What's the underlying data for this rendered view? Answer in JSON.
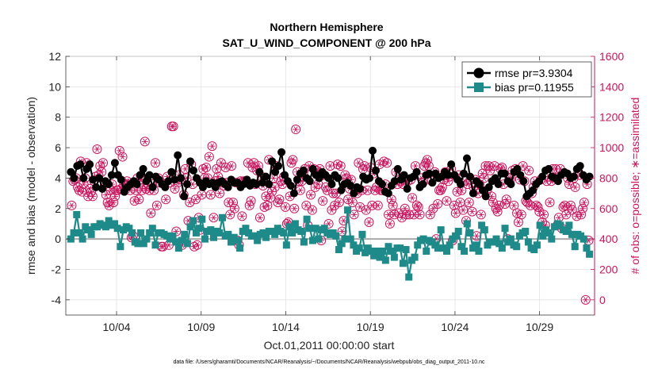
{
  "chart_data": {
    "type": "line",
    "title": "Northern Hemisphere",
    "subtitle": "SAT_U_WIND_COMPONENT @ 200 hPa",
    "xlabel": "Oct.01,2011 00:00:00 start",
    "ylabel_left": "rmse and bias (model - observation)",
    "ylabel_right": "# of obs: o=possible; ∗=assimilated",
    "footnote": "data file: /Users/gharamti/Documents/NCAR/Reanalysis/~/Documents/NCAR/Reanalysis/webpub/obs_diag_output_2011-10.nc",
    "xlim": [
      0.5,
      31.75
    ],
    "ylim_left": [
      -5,
      12
    ],
    "ylim_right": [
      -100,
      1600
    ],
    "x_ticks": [
      3.5,
      8.5,
      13.5,
      18.5,
      23.5,
      28.5
    ],
    "x_tick_labels": [
      "10/04",
      "10/09",
      "10/14",
      "10/19",
      "10/24",
      "10/29"
    ],
    "y_ticks_left": [
      -4,
      -2,
      0,
      2,
      4,
      6,
      8,
      10,
      12
    ],
    "y_tick_labels_left": [
      "-4",
      "-2",
      "0",
      "2",
      "4",
      "6",
      "8",
      "10",
      "12"
    ],
    "y_ticks_right": [
      0,
      200,
      400,
      600,
      800,
      1000,
      1200,
      1400,
      1600
    ],
    "y_tick_labels_right": [
      "0",
      "200",
      "400",
      "600",
      "800",
      "1000",
      "1200",
      "1400",
      "1600"
    ],
    "grid": true,
    "legend_position": "top-right",
    "colors": {
      "rmse": "#000000",
      "bias": "#1e8a89",
      "obs": "#c8155e",
      "zero_line": "#a9a9a9"
    },
    "series": [
      {
        "name": "rmse pr=3.9304",
        "axis": "left",
        "marker": "circle",
        "values": [
          4.4,
          4.0,
          4.8,
          4.9,
          4.0,
          4.6,
          4.9,
          3.9,
          3.4,
          4.0,
          3.3,
          3.8,
          3.6,
          4.2,
          5.0,
          4.2,
          3.9,
          3.1,
          3.4,
          3.6,
          3.8,
          3.6,
          4.2,
          4.6,
          3.8,
          4.2,
          3.4,
          4.1,
          3.9,
          3.6,
          3.4,
          3.8,
          4.4,
          3.9,
          5.5,
          4.0,
          2.8,
          3.6,
          5.1,
          4.5,
          4.0,
          3.7,
          3.4,
          3.8,
          3.6,
          3.7,
          3.4,
          3.7,
          3.8,
          3.6,
          3.4,
          3.9,
          3.7,
          3.7,
          3.4,
          3.6,
          3.9,
          3.5,
          3.7,
          3.6,
          4.4,
          3.7,
          4.1,
          3.6,
          5.1,
          4.4,
          4.8,
          5.7,
          4.2,
          3.8,
          3.5,
          3.0,
          3.9,
          4.3,
          4.5,
          4.0,
          3.8,
          4.6,
          4.2,
          4.0,
          4.4,
          4.2,
          4.0,
          3.6,
          4.2,
          4.0,
          3.2,
          3.6,
          3.7,
          3.5,
          3.0,
          3.4,
          3.3,
          4.1,
          3.9,
          4.0,
          5.8,
          4.5,
          3.8,
          3.6,
          3.1,
          3.0,
          3.5,
          3.8,
          4.6,
          3.9,
          4.2,
          3.3,
          4.0,
          4.1,
          4.4,
          3.4,
          3.6,
          4.2,
          4.3,
          3.7,
          4.3,
          4.0,
          4.1,
          4.4,
          4.2,
          4.9,
          4.2,
          3.9,
          3.6,
          4.3,
          5.3,
          4.1,
          3.0,
          3.8,
          3.6,
          3.2,
          2.8,
          3.4,
          3.8,
          4.0,
          3.6,
          4.3,
          4.3,
          3.8,
          3.6,
          4.4,
          4.6,
          4.2,
          3.8,
          2.8,
          3.0,
          3.2,
          3.6,
          3.8,
          4.1,
          4.5,
          4.6,
          4.1,
          4.0,
          3.8,
          4.2,
          4.4,
          4.3,
          4.0,
          4.1,
          4.6,
          4.8,
          4.2,
          3.9,
          4.1
        ]
      },
      {
        "name": "bias pr=0.11955",
        "axis": "left",
        "marker": "square",
        "values": [
          0.0,
          0.4,
          1.6,
          0.4,
          0.0,
          0.8,
          0.6,
          0.3,
          0.8,
          0.8,
          1.0,
          0.9,
          0.8,
          1.2,
          0.9,
          1.0,
          0.7,
          -0.5,
          0.6,
          0.8,
          0.7,
          0.4,
          -0.2,
          -0.3,
          0.4,
          -0.3,
          0.0,
          0.4,
          0.7,
          -0.4,
          0.4,
          0.4,
          0.3,
          0.2,
          0.0,
          0.2,
          -0.2,
          -0.6,
          -0.1,
          0.3,
          -0.3,
          0.8,
          1.2,
          0.4,
          0.7,
          1.3,
          0.0,
          0.5,
          0.6,
          0.1,
          0.5,
          0.4,
          1.4,
          0.2,
          0.3,
          -0.2,
          0.1,
          -0.1,
          -0.6,
          0.5,
          0.7,
          0.4,
          0.2,
          0.2,
          -0.1,
          0.3,
          0.4,
          0.1,
          0.5,
          0.5,
          0.3,
          0.7,
          0.5,
          0.4,
          -0.4,
          0.8,
          0.4,
          1.0,
          0.6,
          0.5,
          -0.2,
          1.3,
          0.7,
          -0.1,
          0.7,
          0.0,
          0.6,
          0.7,
          0.4,
          0.3,
          0.4,
          0.2,
          -0.7,
          -0.3,
          0.0,
          1.9,
          0.0,
          -0.4,
          -0.8,
          -0.6,
          0.3,
          -0.9,
          -0.6,
          -0.8,
          -1.1,
          -0.8,
          -1.2,
          -0.8,
          -1.4,
          -0.5,
          -0.8,
          -1.2,
          -0.6,
          -0.6,
          -1.6,
          -0.7,
          -2.5,
          -1.4,
          -1.2,
          -0.4,
          -0.1,
          0.0,
          -0.8,
          -0.1,
          -0.2,
          -0.4,
          -0.6,
          0.6,
          -0.6,
          -0.8,
          -0.4,
          0.0,
          0.2,
          0.5,
          -0.5,
          -0.8,
          1.0,
          0.4,
          -0.6,
          -0.4,
          -0.8,
          0.9,
          0.6,
          -0.4,
          -0.2,
          -0.2,
          0.0,
          -0.3,
          -0.6,
          0.7,
          -0.2,
          0.0,
          -0.4,
          -0.5,
          0.2,
          0.4,
          0.5,
          -0.2,
          -0.6,
          -0.7,
          -0.4,
          0.9,
          0.2,
          0.6,
          0.4,
          0.0,
          0.8,
          1.0,
          0.9,
          0.6,
          0.5,
          0.9,
          0.3,
          -0.5,
          0.3,
          0.2,
          0.0,
          -0.6,
          -1.0
        ]
      },
      {
        "name": "# of obs (possible / assimilated)",
        "axis": "right",
        "marker": "circle-asterisk",
        "values": [
          620,
          780,
          790,
          800,
          740,
          720,
          910,
          710,
          760,
          800,
          900,
          680,
          730,
          710,
          680,
          780,
          810,
          990,
          820,
          880,
          840,
          900,
          760,
          690,
          640,
          620,
          720,
          760,
          640,
          680,
          720,
          720,
          980,
          730,
          940,
          760,
          760,
          780,
          760,
          720,
          410,
          420,
          650,
          720,
          800,
          660,
          790,
          720,
          760,
          1040,
          730,
          760,
          720,
          570,
          760,
          720,
          900,
          620,
          800,
          770,
          350,
          350,
          760,
          660,
          810,
          360,
          770,
          1140,
          1140,
          730,
          450,
          770,
          820,
          790,
          360,
          690,
          860,
          800,
          520,
          640,
          890,
          760,
          350,
          660,
          360,
          540,
          460,
          690,
          860,
          800,
          870,
          800,
          940,
          690,
          1010,
          540,
          780,
          860,
          810,
          700,
          900,
          770,
          750,
          870,
          770,
          640,
          560,
          880,
          640,
          600,
          770,
          390,
          360,
          780,
          550,
          780,
          780,
          780,
          900,
          620,
          650,
          870,
          900,
          760,
          850,
          880,
          540,
          810,
          750,
          610,
          680,
          620,
          920,
          670,
          710,
          800,
          740,
          880,
          640,
          660,
          780,
          760,
          810,
          610,
          500,
          510,
          680,
          900,
          920,
          600,
          1120,
          840,
          780,
          720,
          780,
          830,
          860,
          620,
          490,
          880,
          690,
          590,
          860,
          740,
          850,
          760,
          860,
          390,
          650,
          820,
          740,
          720,
          500,
          880,
          590,
          700,
          620,
          700,
          890,
          640,
          880,
          450,
          520,
          820,
          800,
          660,
          730,
          790,
          640,
          560,
          720,
          700,
          900,
          610,
          720,
          860,
          880,
          590,
          720,
          510,
          870,
          620,
          830,
          720,
          740,
          620,
          890,
          720,
          720,
          910,
          760,
          900,
          560,
          500,
          660,
          620,
          560,
          840,
          760,
          570,
          780,
          540,
          760,
          600,
          560,
          780,
          560,
          790,
          670,
          560,
          880,
          620,
          610,
          560,
          800,
          770,
          880,
          900,
          920,
          880,
          560,
          780,
          600,
          840,
          400,
          630,
          720,
          720,
          740,
          790,
          840,
          650,
          780,
          810,
          860,
          390,
          620,
          570,
          710,
          820,
          640,
          720,
          590,
          780,
          520,
          760,
          640,
          790,
          580,
          740,
          790,
          420,
          700,
          760,
          560,
          830,
          800,
          880,
          720,
          880,
          850,
          680,
          640,
          880,
          600,
          580,
          620,
          860,
          870,
          760,
          630,
          660,
          400,
          800,
          800,
          850,
          620,
          860,
          570,
          510,
          790,
          560,
          880,
          780,
          650,
          640,
          850,
          620,
          700,
          740,
          780,
          620,
          610,
          580,
          790,
          510,
          560,
          490,
          780,
          810,
          640,
          780,
          860,
          800,
          860,
          490,
          540,
          860,
          470,
          610,
          620,
          560,
          800,
          760,
          620,
          590,
          800,
          740,
          550,
          840,
          820,
          560,
          600,
          640,
          0,
          760,
          390
        ]
      }
    ]
  }
}
